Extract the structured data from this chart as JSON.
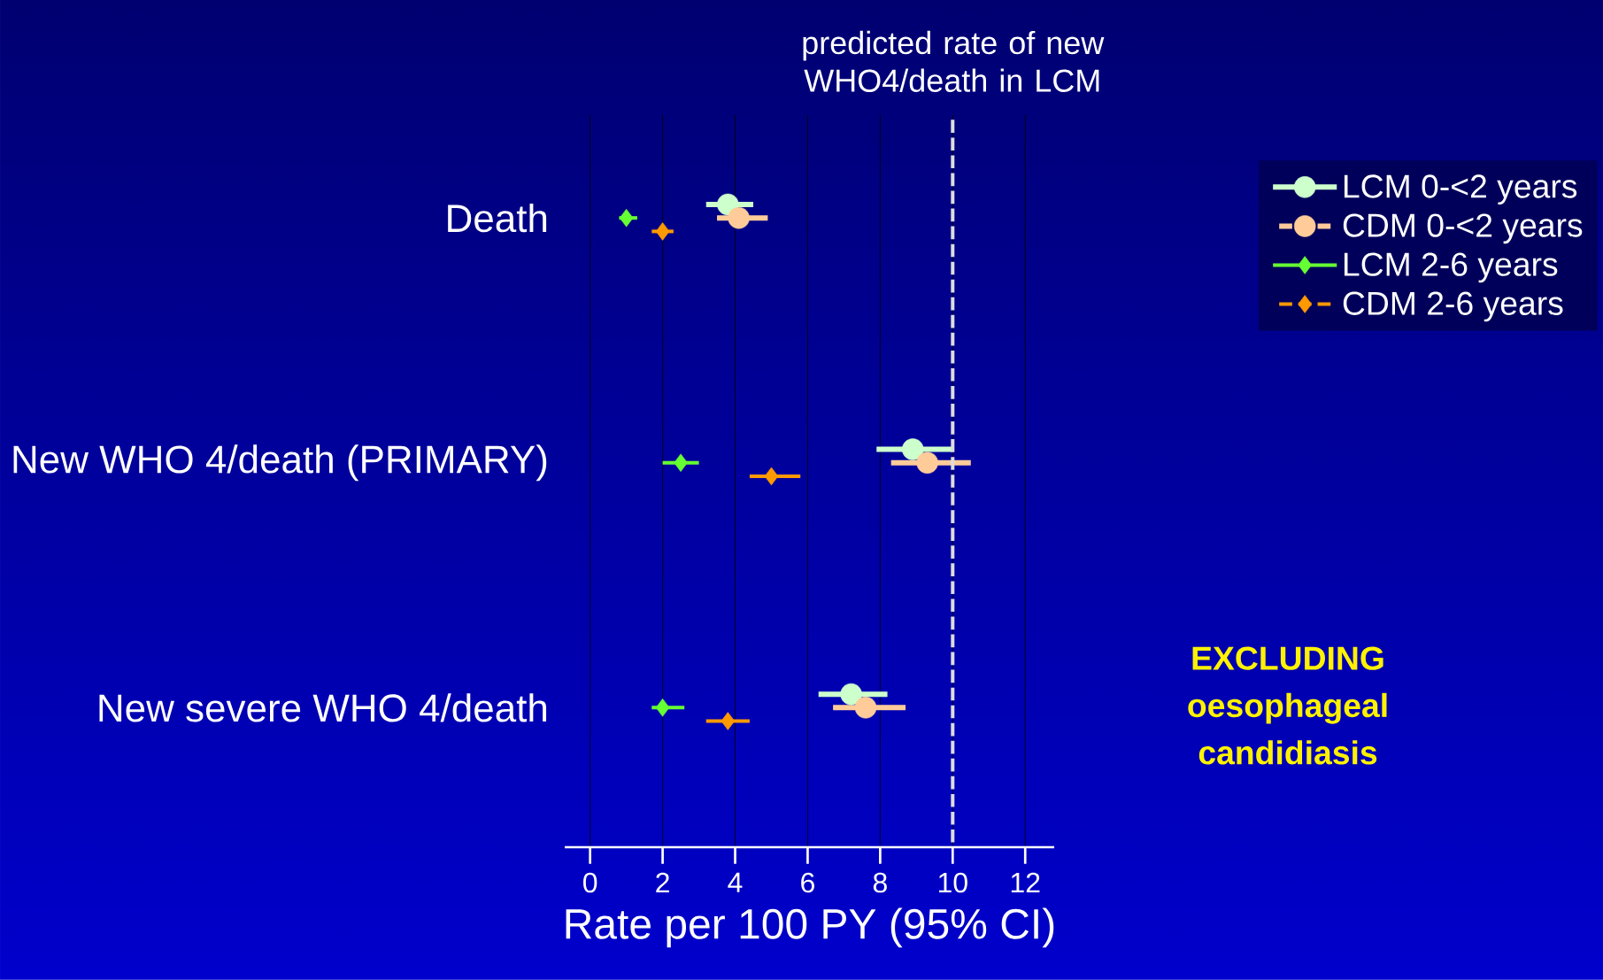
{
  "chart_data": {
    "type": "scatter",
    "orientation": "horizontal",
    "categories": [
      "Death",
      "New WHO 4/death (PRIMARY)",
      "New severe WHO 4/death"
    ],
    "xlabel": "Rate per 100 PY (95% CI)",
    "xlim": [
      -0.7,
      12.8
    ],
    "xticks": [
      0,
      2,
      4,
      6,
      8,
      10,
      12
    ],
    "grid": "x",
    "legend": "right",
    "series": [
      {
        "name": "LCM 0-<2 years",
        "color": "#ccffcc",
        "marker": "circle",
        "line_style": "solid",
        "values": [
          3.8,
          8.9,
          7.2
        ],
        "errors": [
          [
            3.2,
            4.5
          ],
          [
            7.9,
            10.0
          ],
          [
            6.3,
            8.2
          ]
        ]
      },
      {
        "name": "CDM 0-<2 years",
        "color": "#ffcc99",
        "marker": "circle",
        "line_style": "dashed",
        "values": [
          4.1,
          9.3,
          7.6
        ],
        "errors": [
          [
            3.5,
            4.9
          ],
          [
            8.3,
            10.5
          ],
          [
            6.7,
            8.7
          ]
        ]
      },
      {
        "name": "LCM 2-6 years",
        "color": "#66ff33",
        "marker": "diamond",
        "line_style": "solid",
        "values": [
          1.0,
          2.5,
          2.0
        ],
        "errors": [
          [
            0.8,
            1.3
          ],
          [
            2.0,
            3.0
          ],
          [
            1.7,
            2.6
          ]
        ]
      },
      {
        "name": "CDM 2-6 years",
        "color": "#ff9900",
        "marker": "diamond",
        "line_style": "dashed",
        "values": [
          2.0,
          5.0,
          3.8
        ],
        "errors": [
          [
            1.7,
            2.3
          ],
          [
            4.4,
            5.8
          ],
          [
            3.2,
            4.4
          ]
        ]
      }
    ],
    "ref_lines": [
      {
        "axis": "x",
        "value": 10,
        "label": "predicted rate of new WHO4/death in LCM",
        "color": "#dcdcdc",
        "line_style": "dashed"
      }
    ],
    "annotations": [
      "EXCLUDING oesophageal candidiasis"
    ]
  }
}
